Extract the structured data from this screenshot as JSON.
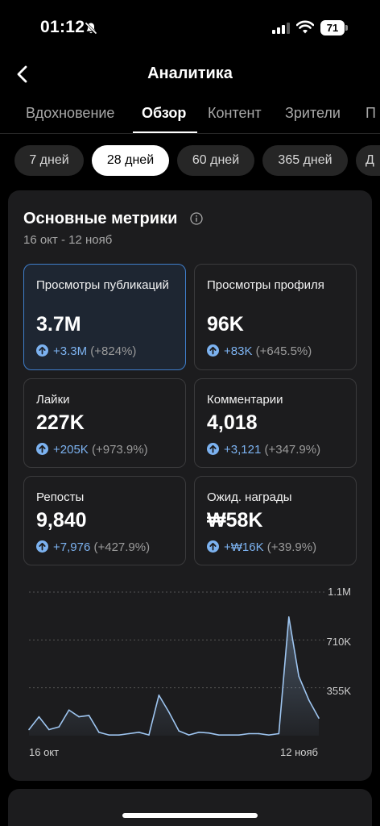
{
  "status": {
    "time": "01:12",
    "battery": "71"
  },
  "header": {
    "title": "Аналитика"
  },
  "tabs": [
    {
      "label": "Вдохновение"
    },
    {
      "label": "Обзор"
    },
    {
      "label": "Контент"
    },
    {
      "label": "Зрители"
    },
    {
      "label": "П"
    }
  ],
  "ranges": [
    {
      "label": "7 дней"
    },
    {
      "label": "28 дней"
    },
    {
      "label": "60 дней"
    },
    {
      "label": "365 дней"
    },
    {
      "label": "Д"
    }
  ],
  "selected_tab": "Обзор",
  "selected_range": "28 дней",
  "card": {
    "title": "Основные метрики",
    "date_range": "16 окт - 12 нояб"
  },
  "metrics": [
    {
      "label": "Просмотры публикаций",
      "value": "3.7M",
      "change": "+3.3M",
      "percent": "(+824%)"
    },
    {
      "label": "Просмотры профиля",
      "value": "96K",
      "change": "+83K",
      "percent": "(+645.5%)"
    },
    {
      "label": "Лайки",
      "value": "227K",
      "change": "+205K",
      "percent": "(+973.9%)"
    },
    {
      "label": "Комментарии",
      "value": "4,018",
      "change": "+3,121",
      "percent": "(+347.9%)"
    },
    {
      "label": "Репосты",
      "value": "9,840",
      "change": "+7,976",
      "percent": "(+427.9%)"
    },
    {
      "label": "Ожид. награды",
      "value": "₩58K",
      "change": "+₩16K",
      "percent": "(+39.9%)"
    }
  ],
  "colors": {
    "accent": "#3f7ecb",
    "change_positive": "#7cb2f0",
    "chart_line": "#9ec5f0"
  },
  "chart_data": {
    "type": "area",
    "x_labels": [
      "16 окт",
      "12 нояб"
    ],
    "y_tick_labels": [
      "1.1M",
      "710K",
      "355K"
    ],
    "y_ticks": [
      1065000,
      710000,
      355000
    ],
    "ylim": [
      0,
      1065000
    ],
    "grid": true,
    "values": [
      45000,
      140000,
      45000,
      65000,
      190000,
      140000,
      150000,
      25000,
      5000,
      5000,
      15000,
      25000,
      5000,
      300000,
      175000,
      35000,
      5000,
      25000,
      20000,
      5000,
      5000,
      5000,
      15000,
      15000,
      5000,
      15000,
      880000,
      440000,
      265000,
      130000
    ]
  }
}
